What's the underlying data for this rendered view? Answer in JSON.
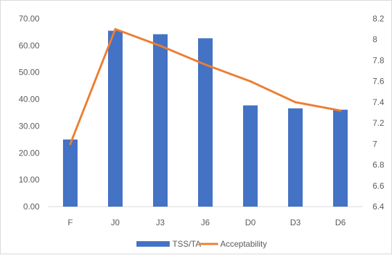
{
  "chart_data": {
    "type": "bar",
    "categories": [
      "F",
      "J0",
      "J3",
      "J6",
      "D0",
      "D3",
      "D6"
    ],
    "series": [
      {
        "name": "TSS/TA",
        "type": "bar",
        "axis": "left",
        "color": "#4472c4",
        "values": [
          25.0,
          65.5,
          64.2,
          62.7,
          37.7,
          36.6,
          36.1
        ]
      },
      {
        "name": "Acceptability",
        "type": "line",
        "axis": "right",
        "color": "#ed7d31",
        "values": [
          7.0,
          8.1,
          7.94,
          7.76,
          7.6,
          7.4,
          7.32
        ]
      }
    ],
    "y_left": {
      "lim": [
        0,
        70
      ],
      "ticks": [
        "0.00",
        "10.00",
        "20.00",
        "30.00",
        "40.00",
        "50.00",
        "60.00",
        "70.00"
      ]
    },
    "y_right": {
      "lim": [
        6.4,
        8.2
      ],
      "ticks": [
        "6.4",
        "6.6",
        "6.8",
        "7",
        "7.2",
        "7.4",
        "7.6",
        "7.8",
        "8",
        "8.2"
      ]
    },
    "grid": false,
    "legend_position": "bottom"
  }
}
